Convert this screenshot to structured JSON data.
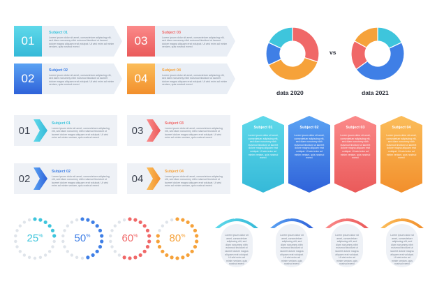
{
  "colors": {
    "cyan": "#3ec5dc",
    "blue": "#3f7fe6",
    "red": "#f06868",
    "orange": "#f6a23a",
    "text": "#7a8492"
  },
  "lorem": "Lorem ipsum dolor sit amet, consectetuer adipiscing elit, sed diam nonummy nibh euismod tincidunt ut laoreet dolore magna aliquam erat volutpat. Ut wisi enim ad minim veniam, quis nostrud exerci",
  "row1": [
    {
      "num": "01",
      "title": "Subject 01",
      "color": "cyan"
    },
    {
      "num": "02",
      "title": "Subject 02",
      "color": "blue"
    },
    {
      "num": "03",
      "title": "Subject 03",
      "color": "red"
    },
    {
      "num": "04",
      "title": "Subject 04",
      "color": "orange"
    }
  ],
  "row2": [
    {
      "num": "01",
      "title": "Subject 01",
      "color": "cyan"
    },
    {
      "num": "02",
      "title": "Subject 02",
      "color": "blue"
    },
    {
      "num": "03",
      "title": "Subject 03",
      "color": "red"
    },
    {
      "num": "04",
      "title": "Subject 04",
      "color": "orange"
    }
  ],
  "hexes": [
    {
      "title": "Subject 01",
      "color": "cyan"
    },
    {
      "title": "Subject 02",
      "color": "blue"
    },
    {
      "title": "Subject 03",
      "color": "red"
    },
    {
      "title": "Subject 04",
      "color": "orange"
    }
  ],
  "progress": [
    {
      "value": 25,
      "color": "cyan"
    },
    {
      "value": 50,
      "color": "blue"
    },
    {
      "value": 60,
      "color": "red"
    },
    {
      "value": 80,
      "color": "orange"
    }
  ],
  "cards": [
    {
      "title": "Subject 01",
      "color": "cyan"
    },
    {
      "title": "Subject 02",
      "color": "blue"
    },
    {
      "title": "Subject 03",
      "color": "red"
    },
    {
      "title": "Subject 04",
      "color": "orange"
    }
  ],
  "donuts": {
    "vs": "vs",
    "left": {
      "label": "data 2020",
      "segments": [
        {
          "value": 30,
          "color": "red"
        },
        {
          "value": 38,
          "color": "orange"
        },
        {
          "value": 14,
          "color": "blue"
        },
        {
          "value": 18,
          "color": "cyan"
        }
      ]
    },
    "right": {
      "label": "data 2021",
      "segments": [
        {
          "value": 18,
          "color": "cyan"
        },
        {
          "value": 47,
          "color": "blue"
        },
        {
          "value": 18,
          "color": "red"
        },
        {
          "value": 17,
          "color": "orange"
        }
      ]
    }
  }
}
